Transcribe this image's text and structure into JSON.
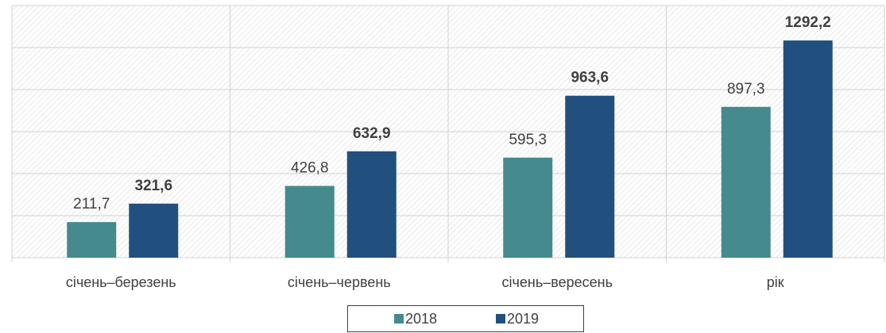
{
  "chart_data": {
    "type": "bar",
    "categories": [
      "січень–березень",
      "січень–червень",
      "січень–вересень",
      "рік"
    ],
    "series": [
      {
        "name": "2018",
        "color": "#458a8c",
        "values": [
          211.7,
          426.8,
          595.3,
          897.3
        ],
        "value_labels": [
          "211,7",
          "426,8",
          "595,3",
          "897,3"
        ],
        "bold_labels": false
      },
      {
        "name": "2019",
        "color": "#22507e",
        "values": [
          321.6,
          632.9,
          963.6,
          1292.2
        ],
        "value_labels": [
          "321,6",
          "632,9",
          "963,6",
          "1292,2"
        ],
        "bold_labels": true
      }
    ],
    "ylim": [
      0,
      1500
    ],
    "yticks": [
      0,
      250,
      500,
      750,
      1000,
      1250,
      1500
    ],
    "grid": true,
    "legend": "bottom"
  }
}
